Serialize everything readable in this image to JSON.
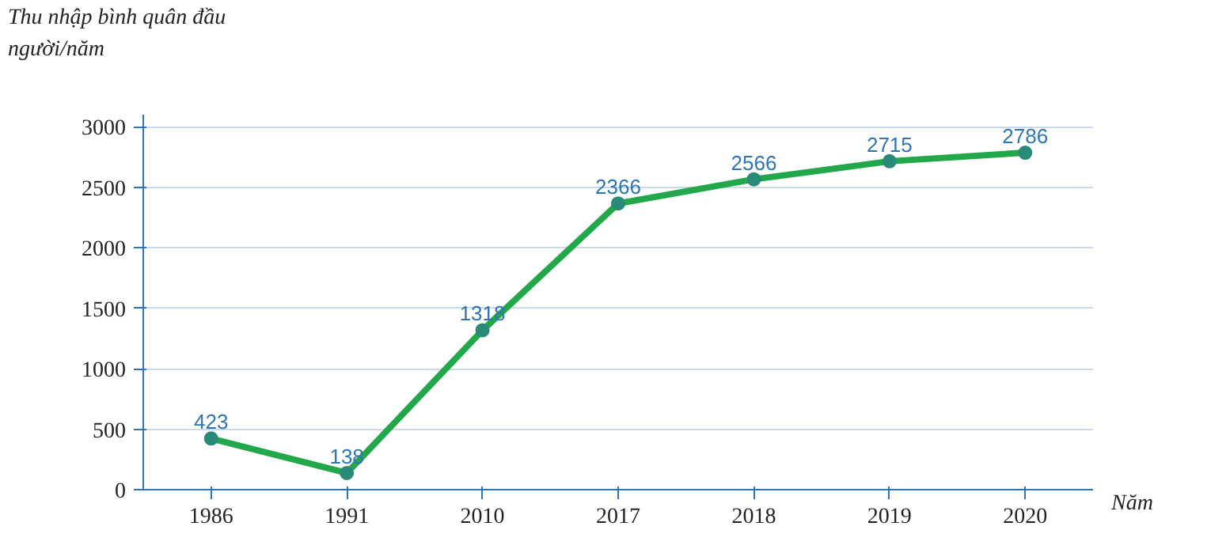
{
  "chart_data": {
    "type": "line",
    "ylabel": "Thu nhập bình quân đầu người/năm",
    "xlabel": "Năm",
    "categories": [
      "1986",
      "1991",
      "2010",
      "2017",
      "2018",
      "2019",
      "2020"
    ],
    "series": [
      {
        "color": "#22a84a",
        "values": [
          423,
          138,
          1318,
          2366,
          2566,
          2715,
          2786
        ]
      }
    ],
    "ylim": [
      0,
      3100
    ],
    "yticks": [
      0,
      500,
      1000,
      1500,
      2000,
      2500,
      3000
    ],
    "grid": "y",
    "marker": "circle",
    "line_style": "solid",
    "data_labels": true
  }
}
